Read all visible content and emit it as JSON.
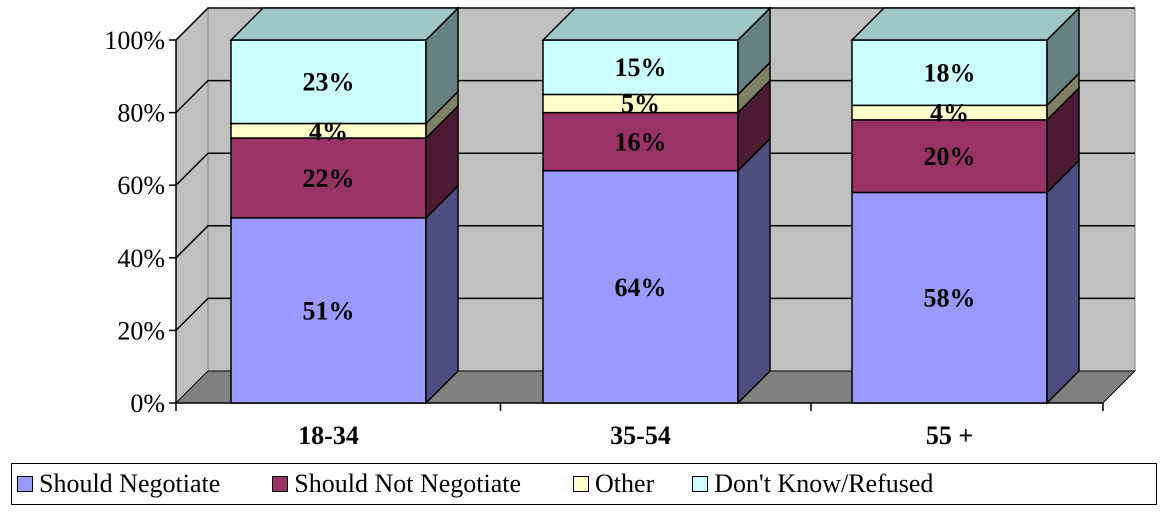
{
  "chart_data": {
    "type": "bar",
    "stacked": true,
    "three_d": true,
    "categories": [
      "18-34",
      "35-54",
      "55 +"
    ],
    "series": [
      {
        "name": "Should Negotiate",
        "values": [
          51,
          64,
          58
        ],
        "labels": [
          "51%",
          "64%",
          "58%"
        ],
        "color": "#9999ff"
      },
      {
        "name": "Should Not Negotiate",
        "values": [
          22,
          16,
          20
        ],
        "labels": [
          "22%",
          "16%",
          "20%"
        ],
        "color": "#993366"
      },
      {
        "name": "Other",
        "values": [
          4,
          5,
          4
        ],
        "labels": [
          "4%",
          "5%",
          "4%"
        ],
        "color": "#ffffcc"
      },
      {
        "name": "Don't Know/Refused",
        "values": [
          23,
          15,
          18
        ],
        "labels": [
          "23%",
          "15%",
          "18%"
        ],
        "color": "#ccffff"
      }
    ],
    "yticks": [
      "0%",
      "20%",
      "40%",
      "60%",
      "80%",
      "100%"
    ],
    "ylim": [
      0,
      100
    ],
    "grid": true,
    "legend_position": "bottom"
  }
}
